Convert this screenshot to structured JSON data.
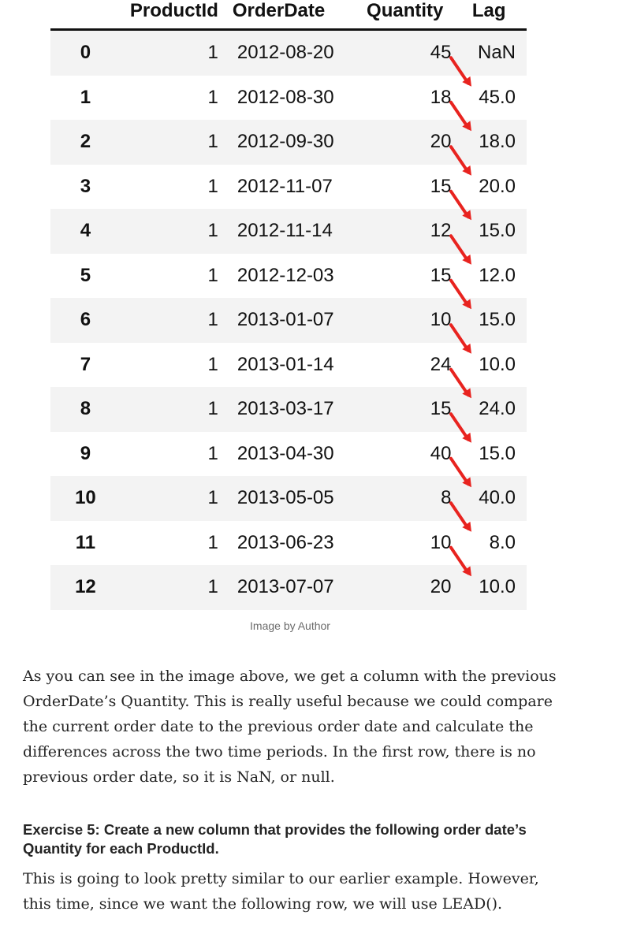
{
  "table": {
    "columns": [
      "",
      "ProductId",
      "OrderDate",
      "Quantity",
      "Lag"
    ],
    "rows": [
      {
        "index": "0",
        "product_id": "1",
        "order_date": "2012-08-20",
        "quantity": "45",
        "lag": "NaN"
      },
      {
        "index": "1",
        "product_id": "1",
        "order_date": "2012-08-30",
        "quantity": "18",
        "lag": "45.0"
      },
      {
        "index": "2",
        "product_id": "1",
        "order_date": "2012-09-30",
        "quantity": "20",
        "lag": "18.0"
      },
      {
        "index": "3",
        "product_id": "1",
        "order_date": "2012-11-07",
        "quantity": "15",
        "lag": "20.0"
      },
      {
        "index": "4",
        "product_id": "1",
        "order_date": "2012-11-14",
        "quantity": "12",
        "lag": "15.0"
      },
      {
        "index": "5",
        "product_id": "1",
        "order_date": "2012-12-03",
        "quantity": "15",
        "lag": "12.0"
      },
      {
        "index": "6",
        "product_id": "1",
        "order_date": "2013-01-07",
        "quantity": "10",
        "lag": "15.0"
      },
      {
        "index": "7",
        "product_id": "1",
        "order_date": "2013-01-14",
        "quantity": "24",
        "lag": "10.0"
      },
      {
        "index": "8",
        "product_id": "1",
        "order_date": "2013-03-17",
        "quantity": "15",
        "lag": "24.0"
      },
      {
        "index": "9",
        "product_id": "1",
        "order_date": "2013-04-30",
        "quantity": "40",
        "lag": "15.0"
      },
      {
        "index": "10",
        "product_id": "1",
        "order_date": "2013-05-05",
        "quantity": "8",
        "lag": "40.0"
      },
      {
        "index": "11",
        "product_id": "1",
        "order_date": "2013-06-23",
        "quantity": "10",
        "lag": "8.0"
      },
      {
        "index": "12",
        "product_id": "1",
        "order_date": "2013-07-07",
        "quantity": "20",
        "lag": "10.0"
      }
    ]
  },
  "arrow_color": "#e8231f",
  "caption": "Image by Author",
  "paragraph1": "As you can see in the image above, we get a column with the previous OrderDate’s Quantity. This is really useful because we could compare the current order date to the previous order date and calculate the differences across the two time periods. In the first row, there is no previous order date, so it is NaN, or null.",
  "exercise_heading": "Exercise 5: Create a new column that provides the following order date’s Quantity for each ProductId.",
  "paragraph2": "This is going to look pretty similar to our earlier example. However, this time, since we want the following row, we will use LEAD()."
}
